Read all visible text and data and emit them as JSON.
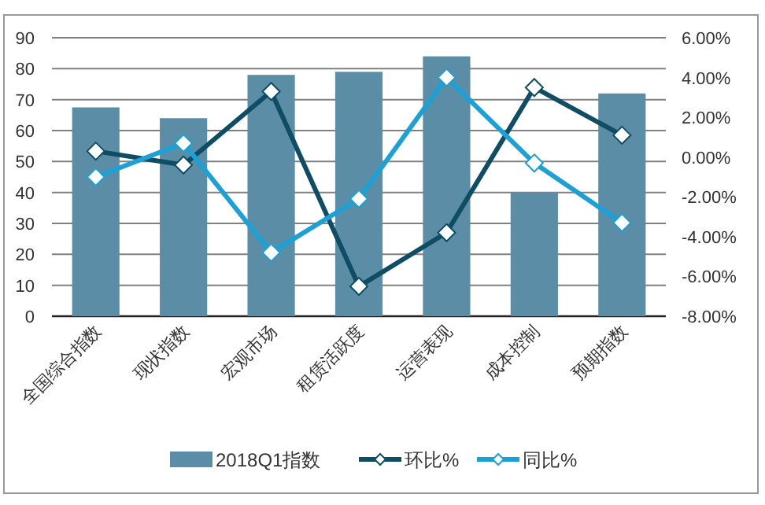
{
  "chart_data": {
    "type": "bar",
    "categories": [
      "全国综合指数",
      "现状指数",
      "宏观市场",
      "租赁活跃度",
      "运营表现",
      "成本控制",
      "预期指数"
    ],
    "series": [
      {
        "name": "2018Q1指数",
        "color": "#5b8ea6",
        "values": [
          67.5,
          64,
          78,
          79,
          84,
          40,
          72
        ]
      },
      {
        "name": "环比%",
        "type": "line",
        "axis": "y2",
        "color": "#0e4d64",
        "values": [
          0.3,
          -0.4,
          3.3,
          -6.5,
          -3.8,
          3.5,
          1.1
        ]
      },
      {
        "name": "同比%",
        "type": "line",
        "axis": "y2",
        "color": "#1ba1d6",
        "values": [
          -1.0,
          0.7,
          -4.8,
          -2.1,
          4.0,
          -0.3,
          -3.3
        ]
      }
    ],
    "ylim": [
      0,
      90
    ],
    "yticks": [
      0,
      10,
      20,
      30,
      40,
      50,
      60,
      70,
      80,
      90
    ],
    "y2lim": [
      -8,
      6
    ],
    "y2ticks": [
      {
        "value": -8,
        "label": "-8.00%"
      },
      {
        "value": -6,
        "label": "-6.00%"
      },
      {
        "value": -4,
        "label": "-4.00%"
      },
      {
        "value": -2,
        "label": "-2.00%"
      },
      {
        "value": 0,
        "label": "0.00%"
      },
      {
        "value": 2,
        "label": "2.00%"
      },
      {
        "value": 4,
        "label": "4.00%"
      },
      {
        "value": 6,
        "label": "6.00%"
      }
    ],
    "grid": "y",
    "legend": "bottom",
    "marker": "diamond"
  }
}
